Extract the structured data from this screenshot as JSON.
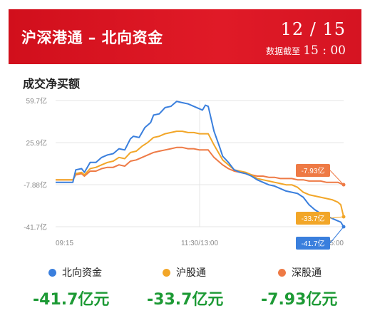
{
  "header": {
    "title": "沪深港通 – 北向资金",
    "date": "12 / 15",
    "as_of_label": "数据截至",
    "as_of_time": "15 : 00"
  },
  "section_title": "成交净买额",
  "colors": {
    "header_bg": "#d9121f",
    "north": "#3a7fdd",
    "sh": "#f2a628",
    "sz": "#ee7a45",
    "value_green": "#1d9a35"
  },
  "legend": [
    {
      "name": "北向资金",
      "color": "#3a7fdd"
    },
    {
      "name": "沪股通",
      "color": "#f2a628"
    },
    {
      "name": "深股通",
      "color": "#ee7a45"
    }
  ],
  "values": [
    "-41.7亿元",
    "-33.7亿元",
    "-7.93亿元"
  ],
  "chart_data": {
    "type": "line",
    "y_ticks": [
      "59.7亿",
      "25.9亿",
      "-7.88亿",
      "-41.7亿"
    ],
    "y_tick_values": [
      59.7,
      25.9,
      -7.88,
      -41.7
    ],
    "ylim": [
      -41.7,
      59.7
    ],
    "x_ticks": [
      "09:15",
      "11:30/13:00",
      "15:00"
    ],
    "x_range": [
      0,
      100
    ],
    "x_tick_positions": [
      0,
      50,
      100
    ],
    "grid": true,
    "end_labels": [
      {
        "series": "北向资金",
        "text": "-41.7亿"
      },
      {
        "series": "沪股通",
        "text": "-33.7亿"
      },
      {
        "series": "深股通",
        "text": "-7.93亿"
      }
    ],
    "series": [
      {
        "name": "北向资金",
        "color": "#3a7fdd",
        "points": [
          [
            0,
            -6
          ],
          [
            6,
            -6
          ],
          [
            7,
            4
          ],
          [
            9,
            5
          ],
          [
            10,
            2
          ],
          [
            12,
            10
          ],
          [
            14,
            10
          ],
          [
            16,
            14
          ],
          [
            18,
            16
          ],
          [
            20,
            17
          ],
          [
            22,
            21
          ],
          [
            24,
            20
          ],
          [
            26,
            29
          ],
          [
            27,
            31
          ],
          [
            29,
            30
          ],
          [
            31,
            38
          ],
          [
            33,
            42
          ],
          [
            34,
            48
          ],
          [
            36,
            49
          ],
          [
            38,
            54
          ],
          [
            40,
            55
          ],
          [
            42,
            59
          ],
          [
            44,
            58
          ],
          [
            46,
            57
          ],
          [
            48,
            55
          ],
          [
            50,
            53
          ],
          [
            51,
            52
          ],
          [
            52,
            56
          ],
          [
            53,
            55
          ],
          [
            55,
            35
          ],
          [
            57,
            22
          ],
          [
            58,
            15
          ],
          [
            60,
            10
          ],
          [
            62,
            4
          ],
          [
            64,
            2
          ],
          [
            66,
            1
          ],
          [
            68,
            -1
          ],
          [
            70,
            -4
          ],
          [
            72,
            -6
          ],
          [
            74,
            -8
          ],
          [
            76,
            -9
          ],
          [
            78,
            -11
          ],
          [
            80,
            -13
          ],
          [
            82,
            -14
          ],
          [
            84,
            -15
          ],
          [
            86,
            -18
          ],
          [
            88,
            -24
          ],
          [
            90,
            -28
          ],
          [
            92,
            -31
          ],
          [
            94,
            -33
          ],
          [
            96,
            -35
          ],
          [
            98,
            -37
          ],
          [
            99,
            -38
          ],
          [
            100,
            -41.7
          ]
        ]
      },
      {
        "name": "沪股通",
        "color": "#f2a628",
        "points": [
          [
            0,
            -4
          ],
          [
            6,
            -4
          ],
          [
            7,
            1
          ],
          [
            9,
            2
          ],
          [
            10,
            0
          ],
          [
            12,
            5
          ],
          [
            14,
            6
          ],
          [
            16,
            8
          ],
          [
            18,
            10
          ],
          [
            20,
            11
          ],
          [
            22,
            14
          ],
          [
            24,
            13
          ],
          [
            26,
            18
          ],
          [
            28,
            19
          ],
          [
            30,
            23
          ],
          [
            32,
            26
          ],
          [
            34,
            30
          ],
          [
            36,
            31
          ],
          [
            38,
            33
          ],
          [
            40,
            34
          ],
          [
            42,
            35
          ],
          [
            44,
            35
          ],
          [
            46,
            34
          ],
          [
            48,
            34
          ],
          [
            50,
            33
          ],
          [
            52,
            33
          ],
          [
            53,
            33
          ],
          [
            55,
            24
          ],
          [
            57,
            16
          ],
          [
            58,
            12
          ],
          [
            60,
            8
          ],
          [
            62,
            4
          ],
          [
            64,
            3
          ],
          [
            66,
            2
          ],
          [
            68,
            0
          ],
          [
            70,
            -3
          ],
          [
            72,
            -4
          ],
          [
            74,
            -5
          ],
          [
            76,
            -6
          ],
          [
            78,
            -7
          ],
          [
            80,
            -8
          ],
          [
            82,
            -8
          ],
          [
            84,
            -10
          ],
          [
            86,
            -14
          ],
          [
            88,
            -16
          ],
          [
            90,
            -17
          ],
          [
            92,
            -18
          ],
          [
            94,
            -19
          ],
          [
            96,
            -20
          ],
          [
            98,
            -22
          ],
          [
            99,
            -24
          ],
          [
            100,
            -33.7
          ]
        ]
      },
      {
        "name": "深股通",
        "color": "#ee7a45",
        "points": [
          [
            0,
            -4
          ],
          [
            6,
            -4
          ],
          [
            7,
            0
          ],
          [
            9,
            1
          ],
          [
            10,
            -1
          ],
          [
            12,
            3
          ],
          [
            14,
            3
          ],
          [
            16,
            5
          ],
          [
            18,
            6
          ],
          [
            20,
            6
          ],
          [
            22,
            8
          ],
          [
            24,
            7
          ],
          [
            26,
            11
          ],
          [
            28,
            12
          ],
          [
            30,
            14
          ],
          [
            32,
            16
          ],
          [
            34,
            18
          ],
          [
            36,
            19
          ],
          [
            38,
            20
          ],
          [
            40,
            21
          ],
          [
            42,
            22
          ],
          [
            44,
            22
          ],
          [
            46,
            21
          ],
          [
            48,
            21
          ],
          [
            50,
            20
          ],
          [
            52,
            20
          ],
          [
            53,
            20
          ],
          [
            55,
            14
          ],
          [
            57,
            10
          ],
          [
            58,
            8
          ],
          [
            60,
            5
          ],
          [
            62,
            3
          ],
          [
            64,
            2
          ],
          [
            66,
            1
          ],
          [
            68,
            0
          ],
          [
            70,
            -1
          ],
          [
            72,
            -1
          ],
          [
            74,
            -2
          ],
          [
            76,
            -2
          ],
          [
            78,
            -3
          ],
          [
            80,
            -3
          ],
          [
            82,
            -3
          ],
          [
            84,
            -4
          ],
          [
            86,
            -4
          ],
          [
            88,
            -5
          ],
          [
            90,
            -5
          ],
          [
            92,
            -5
          ],
          [
            94,
            -6
          ],
          [
            96,
            -6
          ],
          [
            98,
            -6
          ],
          [
            99,
            -7
          ],
          [
            100,
            -7.93
          ]
        ]
      }
    ]
  }
}
